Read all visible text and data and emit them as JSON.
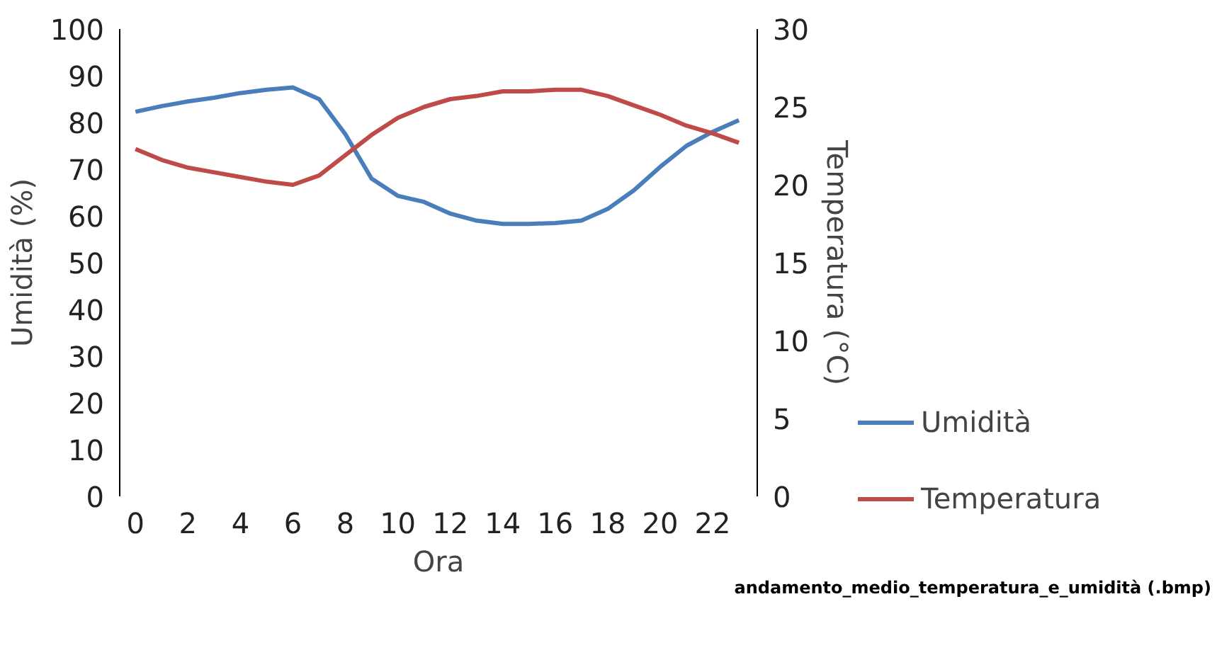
{
  "chart_data": {
    "type": "line",
    "xlabel": "Ora",
    "ylabel": "Umidità (%)",
    "y2label": "Temperatura (°C)",
    "x": [
      0,
      1,
      2,
      3,
      4,
      5,
      6,
      7,
      8,
      9,
      10,
      11,
      12,
      13,
      14,
      15,
      16,
      17,
      18,
      19,
      20,
      21,
      22,
      23
    ],
    "xlim": [
      -0.6,
      23.7
    ],
    "xticks": [
      0,
      2,
      4,
      6,
      8,
      10,
      12,
      14,
      16,
      18,
      20,
      22
    ],
    "ylim": [
      0,
      100
    ],
    "yticks": [
      0,
      10,
      20,
      30,
      40,
      50,
      60,
      70,
      80,
      90,
      100
    ],
    "y2lim": [
      0,
      30
    ],
    "y2ticks": [
      0,
      5,
      10,
      15,
      20,
      25,
      30
    ],
    "series": [
      {
        "name": "Umidità",
        "color": "#4a7ebb",
        "values": [
          82.3,
          83.5,
          84.5,
          85.3,
          86.3,
          87,
          87.5,
          85,
          77.5,
          68,
          64.3,
          63,
          60.5,
          59,
          58.3,
          58.3,
          58.5,
          59,
          61.5,
          65.5,
          70.5,
          75,
          78,
          80.5
        ]
      },
      {
        "name": "Temperatura",
        "color": "#be4b48",
        "axis": "y2",
        "values": [
          22.3,
          21.6,
          21.1,
          20.8,
          20.5,
          20.2,
          20.0,
          20.6,
          21.9,
          23.2,
          24.3,
          25.0,
          25.5,
          25.7,
          26.0,
          26.0,
          26.1,
          26.1,
          25.7,
          25.1,
          24.5,
          23.8,
          23.3,
          22.7
        ]
      }
    ],
    "grid": false,
    "legend": "right",
    "marker": "none",
    "line_style": "solid",
    "annotations": [
      "andamento_medio_temperatura_e_umidità (.bmp)"
    ]
  }
}
